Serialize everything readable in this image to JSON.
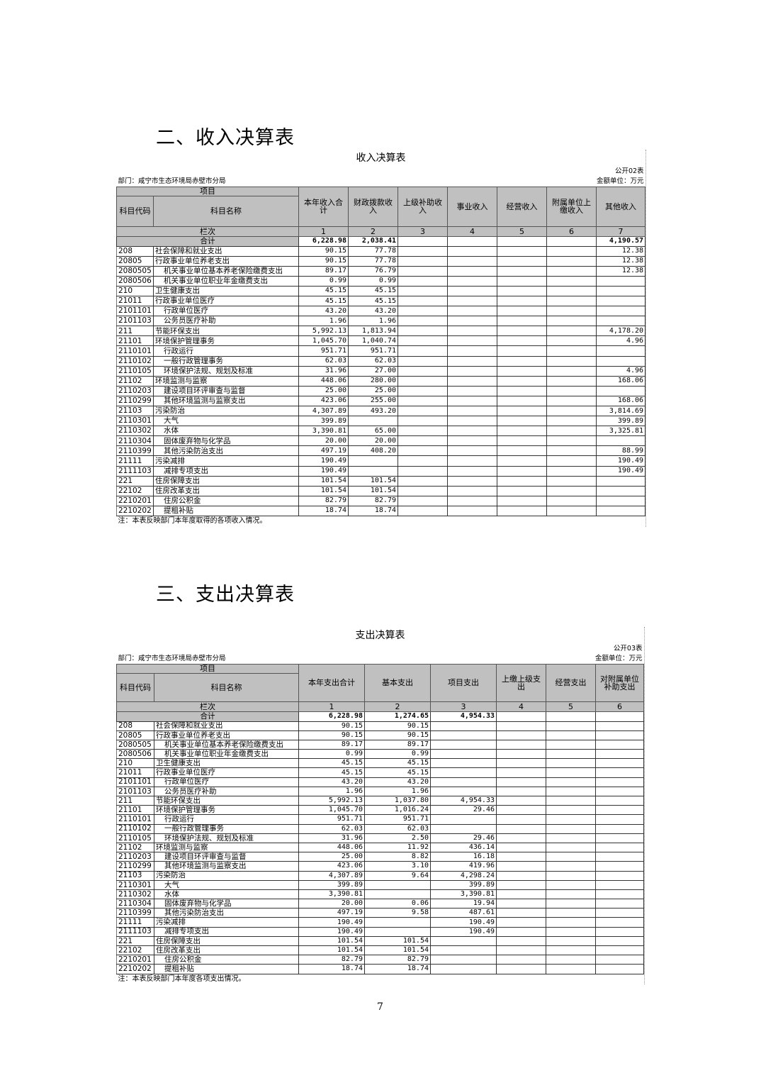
{
  "income": {
    "heading": "二、收入决算表",
    "title": "收入决算表",
    "form_no": "公开02表",
    "department": "部门：咸宁市生态环境局赤壁市分局",
    "unit": "金额单位：万元",
    "item_header": "项目",
    "code_header": "科目代码",
    "name_header": "科目名称",
    "columns": [
      "本年收入合计",
      "财政拨款收入",
      "上级补助收入",
      "事业收入",
      "经营收入",
      "附属单位上缴收入",
      "其他收入"
    ],
    "col_index_label": "栏次",
    "col_indexes": [
      "1",
      "2",
      "3",
      "4",
      "5",
      "6",
      "7"
    ],
    "total_label": "合计",
    "totals": [
      "6,228.98",
      "2,038.41",
      "",
      "",
      "",
      "",
      "4,190.57"
    ],
    "rows": [
      [
        "208",
        "社会保障和就业支出",
        "90.15",
        "77.78",
        "",
        "",
        "",
        "",
        "12.38"
      ],
      [
        "20805",
        "行政事业单位养老支出",
        "90.15",
        "77.78",
        "",
        "",
        "",
        "",
        "12.38"
      ],
      [
        "2080505",
        "机关事业单位基本养老保险缴费支出",
        "89.17",
        "76.79",
        "",
        "",
        "",
        "",
        "12.38"
      ],
      [
        "2080506",
        "机关事业单位职业年金缴费支出",
        "0.99",
        "0.99",
        "",
        "",
        "",
        "",
        ""
      ],
      [
        "210",
        "卫生健康支出",
        "45.15",
        "45.15",
        "",
        "",
        "",
        "",
        ""
      ],
      [
        "21011",
        "行政事业单位医疗",
        "45.15",
        "45.15",
        "",
        "",
        "",
        "",
        ""
      ],
      [
        "2101101",
        "行政单位医疗",
        "43.20",
        "43.20",
        "",
        "",
        "",
        "",
        ""
      ],
      [
        "2101103",
        "公务员医疗补助",
        "1.96",
        "1.96",
        "",
        "",
        "",
        "",
        ""
      ],
      [
        "211",
        "节能环保支出",
        "5,992.13",
        "1,813.94",
        "",
        "",
        "",
        "",
        "4,178.20"
      ],
      [
        "21101",
        "环境保护管理事务",
        "1,045.70",
        "1,040.74",
        "",
        "",
        "",
        "",
        "4.96"
      ],
      [
        "2110101",
        "行政运行",
        "951.71",
        "951.71",
        "",
        "",
        "",
        "",
        ""
      ],
      [
        "2110102",
        "一般行政管理事务",
        "62.03",
        "62.03",
        "",
        "",
        "",
        "",
        ""
      ],
      [
        "2110105",
        "环境保护法规、规划及标准",
        "31.96",
        "27.00",
        "",
        "",
        "",
        "",
        "4.96"
      ],
      [
        "21102",
        "环境监测与监察",
        "448.06",
        "280.00",
        "",
        "",
        "",
        "",
        "168.06"
      ],
      [
        "2110203",
        "建设项目环评审查与监督",
        "25.00",
        "25.00",
        "",
        "",
        "",
        "",
        ""
      ],
      [
        "2110299",
        "其他环境监测与监察支出",
        "423.06",
        "255.00",
        "",
        "",
        "",
        "",
        "168.06"
      ],
      [
        "21103",
        "污染防治",
        "4,307.89",
        "493.20",
        "",
        "",
        "",
        "",
        "3,814.69"
      ],
      [
        "2110301",
        "大气",
        "399.89",
        "",
        "",
        "",
        "",
        "",
        "399.89"
      ],
      [
        "2110302",
        "水体",
        "3,390.81",
        "65.00",
        "",
        "",
        "",
        "",
        "3,325.81"
      ],
      [
        "2110304",
        "固体废弃物与化学品",
        "20.00",
        "20.00",
        "",
        "",
        "",
        "",
        ""
      ],
      [
        "2110399",
        "其他污染防治支出",
        "497.19",
        "408.20",
        "",
        "",
        "",
        "",
        "88.99"
      ],
      [
        "21111",
        "污染减排",
        "190.49",
        "",
        "",
        "",
        "",
        "",
        "190.49"
      ],
      [
        "2111103",
        "减排专项支出",
        "190.49",
        "",
        "",
        "",
        "",
        "",
        "190.49"
      ],
      [
        "221",
        "住房保障支出",
        "101.54",
        "101.54",
        "",
        "",
        "",
        "",
        ""
      ],
      [
        "22102",
        "住房改革支出",
        "101.54",
        "101.54",
        "",
        "",
        "",
        "",
        ""
      ],
      [
        "2210201",
        "住房公积金",
        "82.79",
        "82.79",
        "",
        "",
        "",
        "",
        ""
      ],
      [
        "2210202",
        "提租补贴",
        "18.74",
        "18.74",
        "",
        "",
        "",
        "",
        ""
      ]
    ],
    "note": "注：本表反映部门本年度取得的各项收入情况。"
  },
  "expense": {
    "heading": "三、支出决算表",
    "title": "支出决算表",
    "form_no": "公开03表",
    "department": "部门：咸宁市生态环境局赤壁市分局",
    "unit": "金额单位：万元",
    "item_header": "项目",
    "code_header": "科目代码",
    "name_header": "科目名称",
    "columns": [
      "本年支出合计",
      "基本支出",
      "项目支出",
      "上缴上级支出",
      "经营支出",
      "对附属单位补助支出"
    ],
    "col_index_label": "栏次",
    "col_indexes": [
      "1",
      "2",
      "3",
      "4",
      "5",
      "6"
    ],
    "total_label": "合计",
    "totals": [
      "6,228.98",
      "1,274.65",
      "4,954.33",
      "",
      "",
      ""
    ],
    "rows": [
      [
        "208",
        "社会保障和就业支出",
        "90.15",
        "90.15",
        "",
        "",
        "",
        ""
      ],
      [
        "20805",
        "行政事业单位养老支出",
        "90.15",
        "90.15",
        "",
        "",
        "",
        ""
      ],
      [
        "2080505",
        "机关事业单位基本养老保险缴费支出",
        "89.17",
        "89.17",
        "",
        "",
        "",
        ""
      ],
      [
        "2080506",
        "机关事业单位职业年金缴费支出",
        "0.99",
        "0.99",
        "",
        "",
        "",
        ""
      ],
      [
        "210",
        "卫生健康支出",
        "45.15",
        "45.15",
        "",
        "",
        "",
        ""
      ],
      [
        "21011",
        "行政事业单位医疗",
        "45.15",
        "45.15",
        "",
        "",
        "",
        ""
      ],
      [
        "2101101",
        "行政单位医疗",
        "43.20",
        "43.20",
        "",
        "",
        "",
        ""
      ],
      [
        "2101103",
        "公务员医疗补助",
        "1.96",
        "1.96",
        "",
        "",
        "",
        ""
      ],
      [
        "211",
        "节能环保支出",
        "5,992.13",
        "1,037.80",
        "4,954.33",
        "",
        "",
        ""
      ],
      [
        "21101",
        "环境保护管理事务",
        "1,045.70",
        "1,016.24",
        "29.46",
        "",
        "",
        ""
      ],
      [
        "2110101",
        "行政运行",
        "951.71",
        "951.71",
        "",
        "",
        "",
        ""
      ],
      [
        "2110102",
        "一般行政管理事务",
        "62.03",
        "62.03",
        "",
        "",
        "",
        ""
      ],
      [
        "2110105",
        "环境保护法规、规划及标准",
        "31.96",
        "2.50",
        "29.46",
        "",
        "",
        ""
      ],
      [
        "21102",
        "环境监测与监察",
        "448.06",
        "11.92",
        "436.14",
        "",
        "",
        ""
      ],
      [
        "2110203",
        "建设项目环评审查与监督",
        "25.00",
        "8.82",
        "16.18",
        "",
        "",
        ""
      ],
      [
        "2110299",
        "其他环境监测与监察支出",
        "423.06",
        "3.10",
        "419.96",
        "",
        "",
        ""
      ],
      [
        "21103",
        "污染防治",
        "4,307.89",
        "9.64",
        "4,298.24",
        "",
        "",
        ""
      ],
      [
        "2110301",
        "大气",
        "399.89",
        "",
        "399.89",
        "",
        "",
        ""
      ],
      [
        "2110302",
        "水体",
        "3,390.81",
        "",
        "3,390.81",
        "",
        "",
        ""
      ],
      [
        "2110304",
        "固体废弃物与化学品",
        "20.00",
        "0.06",
        "19.94",
        "",
        "",
        ""
      ],
      [
        "2110399",
        "其他污染防治支出",
        "497.19",
        "9.58",
        "487.61",
        "",
        "",
        ""
      ],
      [
        "21111",
        "污染减排",
        "190.49",
        "",
        "190.49",
        "",
        "",
        ""
      ],
      [
        "2111103",
        "减排专项支出",
        "190.49",
        "",
        "190.49",
        "",
        "",
        ""
      ],
      [
        "221",
        "住房保障支出",
        "101.54",
        "101.54",
        "",
        "",
        "",
        ""
      ],
      [
        "22102",
        "住房改革支出",
        "101.54",
        "101.54",
        "",
        "",
        "",
        ""
      ],
      [
        "2210201",
        "住房公积金",
        "82.79",
        "82.79",
        "",
        "",
        "",
        ""
      ],
      [
        "2210202",
        "提租补贴",
        "18.74",
        "18.74",
        "",
        "",
        "",
        ""
      ]
    ],
    "note": "注：本表反映部门本年度各项支出情况。"
  },
  "page_number": "7"
}
